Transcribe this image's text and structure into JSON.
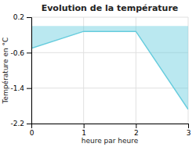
{
  "chart_data": {
    "type": "area",
    "title": "Evolution de la température",
    "x_label": "heure par heure",
    "y_label": "Température en °C",
    "x": [
      0,
      1,
      2,
      3
    ],
    "values": [
      -0.5,
      -0.12,
      -0.12,
      -1.88
    ],
    "color": "#66ccdd",
    "xlim": [
      0,
      3
    ],
    "ylim": [
      -2.2,
      0.2
    ],
    "xticks": [
      0,
      1,
      2,
      3
    ],
    "yticks": [
      0.2,
      -0.6,
      -1.4,
      -2.2
    ],
    "grid": true
  }
}
